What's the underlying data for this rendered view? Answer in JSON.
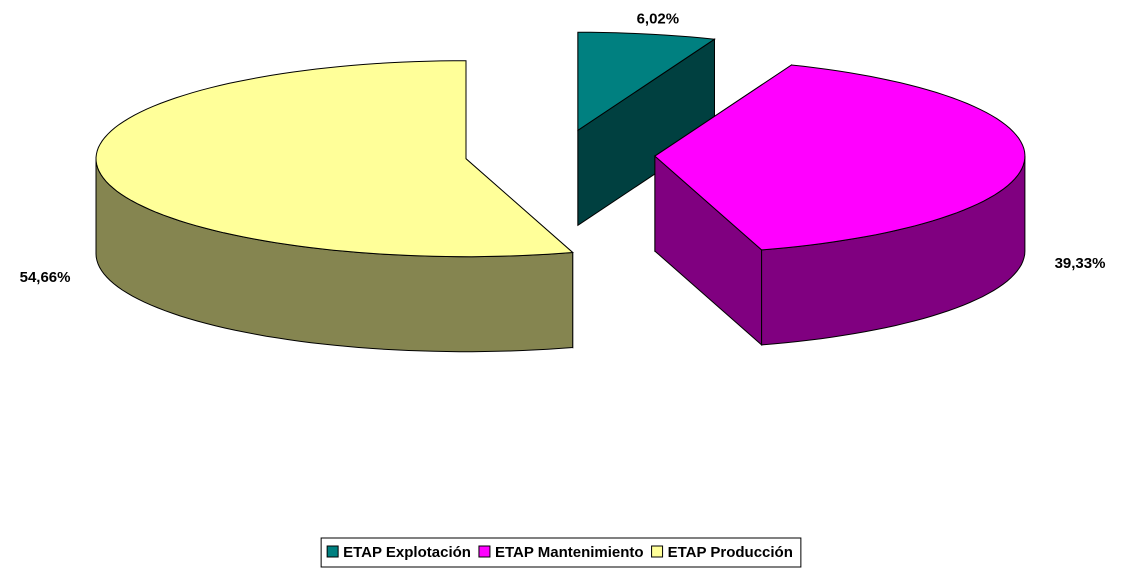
{
  "chart_data": {
    "type": "pie3d",
    "categories": [
      "ETAP Explotación",
      "ETAP Mantenimiento",
      "ETAP Producción"
    ],
    "values": [
      6.02,
      39.33,
      54.66
    ],
    "value_labels": [
      "6,02%",
      "39,33%",
      "54,66%"
    ],
    "colors": [
      "#008080",
      "#FF00FF",
      "#FFFF99"
    ],
    "side_colors": [
      "#004040",
      "#800080",
      "#858550"
    ],
    "legend": "bottom"
  }
}
